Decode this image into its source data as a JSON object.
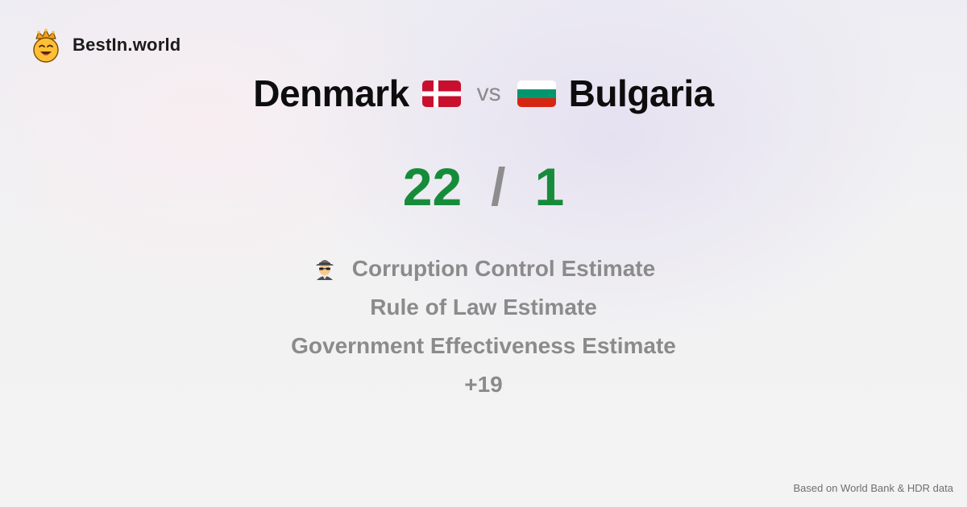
{
  "brand": {
    "name": "BestIn.world",
    "logo_icon": "crowned-smiley-face-icon"
  },
  "comparison": {
    "left_country": "Denmark",
    "left_flag": "denmark-flag-icon",
    "vs": "vs",
    "right_country": "Bulgaria",
    "right_flag": "bulgaria-flag-icon"
  },
  "score": {
    "left": "22",
    "separator": "/",
    "right": "1"
  },
  "metrics": {
    "item_0": {
      "icon": "detective-icon",
      "label": "Corruption Control Estimate"
    },
    "item_1": {
      "label": "Rule of Law Estimate"
    },
    "item_2": {
      "label": "Government Effectiveness Estimate"
    },
    "more": "+19"
  },
  "footer": {
    "source": "Based on World Bank & HDR data"
  },
  "colors": {
    "score_green": "#168c3b",
    "muted_text": "#8b8b8b",
    "title_text": "#0d0d0d"
  }
}
